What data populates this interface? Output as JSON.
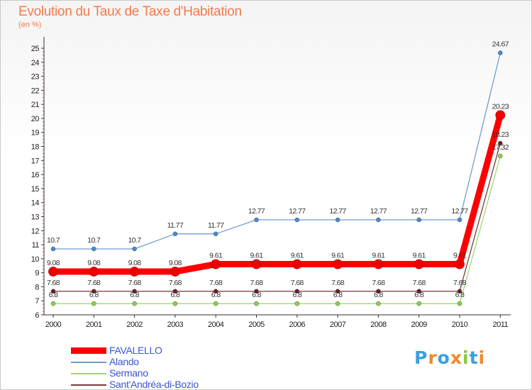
{
  "chart_data": {
    "type": "line",
    "title": "Evolution du Taux de Taxe d'Habitation",
    "subtitle": "(en %)",
    "x": [
      "2000",
      "2001",
      "2002",
      "2003",
      "2004",
      "2005",
      "2006",
      "2007",
      "2008",
      "2009",
      "2010",
      "2011"
    ],
    "ylim": [
      6,
      25
    ],
    "yticks": [
      6,
      7,
      8,
      9,
      10,
      11,
      12,
      13,
      14,
      15,
      16,
      17,
      18,
      19,
      20,
      21,
      22,
      23,
      24,
      25
    ],
    "series": [
      {
        "name": "Alando",
        "color": "#6f9fcf",
        "point_color": "#4a8ad0",
        "thickness": "thin",
        "values": [
          10.7,
          10.7,
          10.7,
          11.77,
          11.77,
          12.77,
          12.77,
          12.77,
          12.77,
          12.77,
          12.77,
          24.67
        ],
        "labels": [
          "10.7",
          "10.7",
          "10.7",
          "11.77",
          "11.77",
          "12.77",
          "12.77",
          "12.77",
          "12.77",
          "12.77",
          "12.77",
          "24.67"
        ]
      },
      {
        "name": "Sermano",
        "color": "#a2d77a",
        "point_color": "#8bd63b",
        "thickness": "thin",
        "values": [
          6.8,
          6.8,
          6.8,
          6.8,
          6.8,
          6.8,
          6.8,
          6.8,
          6.8,
          6.8,
          6.8,
          17.32
        ],
        "labels": [
          "6.8",
          "6.8",
          "6.8",
          "6.8",
          "6.8",
          "6.8",
          "6.8",
          "6.8",
          "6.8",
          "6.8",
          "6.8",
          "17.32"
        ]
      },
      {
        "name": "Sant'Andréa-di-Bozio",
        "color": "#7a3a3a",
        "point_color": "#6b1f1f",
        "thickness": "thin",
        "values": [
          7.68,
          7.68,
          7.68,
          7.68,
          7.68,
          7.68,
          7.68,
          7.68,
          7.68,
          7.68,
          7.68,
          18.23
        ],
        "labels": [
          "7.68",
          "7.68",
          "7.68",
          "7.68",
          "7.68",
          "7.68",
          "7.68",
          "7.68",
          "7.68",
          "7.68",
          "7.68",
          "18.23"
        ]
      },
      {
        "name": "FAVALELLO",
        "color": "#ff0000",
        "point_color": "#ee0000",
        "thickness": "thick",
        "values": [
          9.08,
          9.08,
          9.08,
          9.08,
          9.61,
          9.61,
          9.61,
          9.61,
          9.61,
          9.61,
          9.61,
          20.23
        ],
        "labels": [
          "9.08",
          "9.08",
          "9.08",
          "9.08",
          "9.61",
          "9.61",
          "9.61",
          "9.61",
          "9.61",
          "9.61",
          "9.61",
          "20.23"
        ]
      }
    ],
    "legend_order": [
      "FAVALELLO",
      "Alando",
      "Sermano",
      "Sant'Andréa-di-Bozio"
    ],
    "legend_position": "bottom-left",
    "grid": false
  },
  "logo": {
    "text": "Proxiti",
    "letters": [
      {
        "ch": "P",
        "color": "#3aa0e0"
      },
      {
        "ch": "r",
        "color": "#f08a2c"
      },
      {
        "ch": "o",
        "color": "#3aa0e0"
      },
      {
        "ch": "x",
        "color": "#f08a2c"
      },
      {
        "ch": "i",
        "color": "#8cc63f"
      },
      {
        "ch": "t",
        "color": "#3aa0e0"
      },
      {
        "ch": "i",
        "color": "#f08a2c"
      }
    ]
  }
}
